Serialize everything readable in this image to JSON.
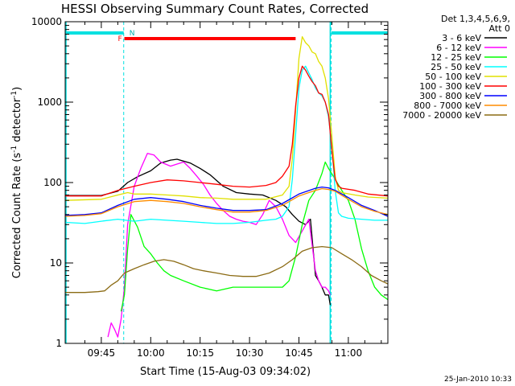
{
  "chart_data": {
    "type": "line",
    "title": "HESSI Observing Summary Count Rates, Corrected",
    "xlabel": "Start Time (15-Aug-03 09:34:02)",
    "ylabel": "Corrected Count Rate (s",
    "ylabel_sup": "-1",
    "ylabel_mid": " detector",
    "ylabel_end": ")",
    "yscale": "log",
    "ylim": [
      1,
      10000
    ],
    "xlim_minutes": [
      34.03,
      132.0
    ],
    "x_ticks": [
      {
        "minute": 45,
        "label": "09:45"
      },
      {
        "minute": 60,
        "label": "10:00"
      },
      {
        "minute": 75,
        "label": "10:15"
      },
      {
        "minute": 90,
        "label": "10:30"
      },
      {
        "minute": 105,
        "label": "10:45"
      },
      {
        "minute": 120,
        "label": "11:00"
      }
    ],
    "y_ticks": [
      {
        "value": 1,
        "label": "1"
      },
      {
        "value": 10,
        "label": "10"
      },
      {
        "value": 100,
        "label": "100"
      },
      {
        "value": 1000,
        "label": "1000"
      },
      {
        "value": 10000,
        "label": "10000"
      }
    ],
    "legend_header": [
      "Det 1,3,4,5,6,9,",
      "Att 0"
    ],
    "legend_position": "top-right",
    "footer_date": "25-Jan-2010 10:33",
    "night_intervals": [
      [
        34.03,
        51.8
      ],
      [
        114.8,
        132.0
      ]
    ],
    "night_label": "N",
    "flare_interval": [
      52.0,
      104.0
    ],
    "flare_label": "F",
    "day_boundaries": [
      51.8,
      114.8
    ],
    "series": [
      {
        "name": "3 - 6 keV",
        "color": "#000000",
        "points": [
          [
            34.03,
            69
          ],
          [
            45,
            69
          ],
          [
            50,
            78
          ],
          [
            53,
            100
          ],
          [
            56,
            118
          ],
          [
            60,
            140
          ],
          [
            63,
            175
          ],
          [
            66,
            190
          ],
          [
            68,
            195
          ],
          [
            72,
            175
          ],
          [
            75,
            150
          ],
          [
            78,
            125
          ],
          [
            82,
            90
          ],
          [
            86,
            75
          ],
          [
            90,
            72
          ],
          [
            94,
            70
          ],
          [
            98,
            60
          ],
          [
            101,
            50
          ],
          [
            103,
            40
          ],
          [
            105,
            33
          ],
          [
            107,
            30
          ],
          [
            108.5,
            35
          ],
          [
            110,
            7
          ],
          [
            111,
            6
          ],
          [
            112,
            5
          ],
          [
            113,
            4
          ],
          [
            114,
            4
          ],
          [
            114.5,
            3
          ]
        ]
      },
      {
        "name": "6 - 12 keV",
        "color": "#ff00ff",
        "points": [
          [
            47,
            1.2
          ],
          [
            48,
            1.8
          ],
          [
            49,
            1.5
          ],
          [
            50,
            1.2
          ],
          [
            51,
            2
          ],
          [
            52,
            5
          ],
          [
            53,
            30
          ],
          [
            55,
            90
          ],
          [
            57,
            150
          ],
          [
            59,
            230
          ],
          [
            61,
            220
          ],
          [
            63,
            180
          ],
          [
            66,
            160
          ],
          [
            68,
            170
          ],
          [
            70,
            180
          ],
          [
            72,
            150
          ],
          [
            74,
            120
          ],
          [
            76,
            95
          ],
          [
            78,
            70
          ],
          [
            80,
            55
          ],
          [
            82,
            45
          ],
          [
            84,
            38
          ],
          [
            86,
            35
          ],
          [
            88,
            33
          ],
          [
            90,
            32
          ],
          [
            92,
            30
          ],
          [
            94,
            40
          ],
          [
            96,
            60
          ],
          [
            98,
            50
          ],
          [
            100,
            35
          ],
          [
            102,
            22
          ],
          [
            104,
            18
          ],
          [
            106,
            25
          ],
          [
            108,
            35
          ],
          [
            110,
            8
          ],
          [
            111,
            6
          ],
          [
            112,
            5
          ],
          [
            113,
            5
          ],
          [
            114,
            4.5
          ],
          [
            114.5,
            4
          ]
        ]
      },
      {
        "name": "12 - 25 keV",
        "color": "#00ff00",
        "points": [
          [
            51,
            2.5
          ],
          [
            52,
            4
          ],
          [
            53,
            15
          ],
          [
            54,
            40
          ],
          [
            56,
            28
          ],
          [
            58,
            16
          ],
          [
            60,
            13
          ],
          [
            62,
            10
          ],
          [
            64,
            8
          ],
          [
            66,
            7
          ],
          [
            70,
            6
          ],
          [
            75,
            5
          ],
          [
            80,
            4.5
          ],
          [
            85,
            5
          ],
          [
            90,
            5
          ],
          [
            95,
            5
          ],
          [
            100,
            5
          ],
          [
            102,
            6
          ],
          [
            104,
            12
          ],
          [
            106,
            30
          ],
          [
            108,
            60
          ],
          [
            110,
            80
          ],
          [
            112,
            130
          ],
          [
            113,
            180
          ],
          [
            114,
            150
          ],
          [
            116,
            110
          ],
          [
            118,
            80
          ],
          [
            120,
            60
          ],
          [
            122,
            35
          ],
          [
            124,
            15
          ],
          [
            126,
            8
          ],
          [
            128,
            5
          ],
          [
            130,
            4
          ],
          [
            132,
            3.5
          ]
        ]
      },
      {
        "name": "25 - 50 keV",
        "color": "#00ffff",
        "points": [
          [
            34.03,
            32
          ],
          [
            40,
            31
          ],
          [
            45,
            33
          ],
          [
            50,
            35
          ],
          [
            55,
            33
          ],
          [
            60,
            35
          ],
          [
            65,
            34
          ],
          [
            70,
            33
          ],
          [
            75,
            32
          ],
          [
            80,
            31
          ],
          [
            85,
            31
          ],
          [
            90,
            32
          ],
          [
            95,
            34
          ],
          [
            98,
            35
          ],
          [
            100,
            38
          ],
          [
            102,
            50
          ],
          [
            103,
            110
          ],
          [
            104,
            400
          ],
          [
            105,
            1500
          ],
          [
            106,
            2500
          ],
          [
            107,
            2800
          ],
          [
            108,
            2300
          ],
          [
            109,
            1900
          ],
          [
            110,
            1500
          ],
          [
            111,
            1300
          ],
          [
            112,
            1200
          ],
          [
            113,
            1000
          ],
          [
            114,
            650
          ],
          [
            115,
            280
          ],
          [
            116,
            80
          ],
          [
            117,
            42
          ],
          [
            118,
            38
          ],
          [
            120,
            36
          ],
          [
            124,
            35
          ],
          [
            128,
            34
          ],
          [
            132,
            34
          ]
        ]
      },
      {
        "name": "50 - 100 keV",
        "color": "#e0e000",
        "points": [
          [
            34.03,
            60
          ],
          [
            45,
            62
          ],
          [
            50,
            70
          ],
          [
            53,
            75
          ],
          [
            55,
            72
          ],
          [
            60,
            72
          ],
          [
            65,
            70
          ],
          [
            70,
            68
          ],
          [
            75,
            65
          ],
          [
            80,
            64
          ],
          [
            85,
            62
          ],
          [
            90,
            62
          ],
          [
            95,
            62
          ],
          [
            100,
            70
          ],
          [
            102,
            90
          ],
          [
            103,
            200
          ],
          [
            104,
            800
          ],
          [
            105,
            3500
          ],
          [
            106,
            6500
          ],
          [
            107,
            5500
          ],
          [
            108,
            5000
          ],
          [
            109,
            4200
          ],
          [
            110,
            4000
          ],
          [
            111,
            3200
          ],
          [
            112,
            2800
          ],
          [
            113,
            2000
          ],
          [
            114,
            1100
          ],
          [
            115,
            380
          ],
          [
            116,
            120
          ],
          [
            117,
            80
          ],
          [
            118,
            75
          ],
          [
            122,
            70
          ],
          [
            126,
            66
          ],
          [
            132,
            64
          ]
        ]
      },
      {
        "name": "100 - 300 keV",
        "color": "#ff0000",
        "points": [
          [
            34.03,
            68
          ],
          [
            45,
            68
          ],
          [
            50,
            80
          ],
          [
            55,
            90
          ],
          [
            60,
            100
          ],
          [
            65,
            108
          ],
          [
            70,
            105
          ],
          [
            75,
            100
          ],
          [
            80,
            95
          ],
          [
            85,
            90
          ],
          [
            90,
            88
          ],
          [
            95,
            92
          ],
          [
            98,
            100
          ],
          [
            100,
            120
          ],
          [
            102,
            160
          ],
          [
            103,
            300
          ],
          [
            104,
            900
          ],
          [
            105,
            2000
          ],
          [
            106,
            2800
          ],
          [
            107,
            2500
          ],
          [
            108,
            2100
          ],
          [
            109,
            1800
          ],
          [
            110,
            1600
          ],
          [
            111,
            1300
          ],
          [
            112,
            1250
          ],
          [
            113,
            1000
          ],
          [
            114,
            700
          ],
          [
            115,
            250
          ],
          [
            116,
            110
          ],
          [
            117,
            90
          ],
          [
            118,
            85
          ],
          [
            122,
            80
          ],
          [
            126,
            72
          ],
          [
            132,
            68
          ]
        ]
      },
      {
        "name": "300 - 800 keV",
        "color": "#0000ff",
        "points": [
          [
            34.03,
            39
          ],
          [
            40,
            40
          ],
          [
            45,
            42
          ],
          [
            50,
            52
          ],
          [
            55,
            62
          ],
          [
            60,
            65
          ],
          [
            65,
            62
          ],
          [
            70,
            58
          ],
          [
            75,
            52
          ],
          [
            80,
            48
          ],
          [
            85,
            45
          ],
          [
            90,
            45
          ],
          [
            95,
            46
          ],
          [
            100,
            55
          ],
          [
            105,
            72
          ],
          [
            110,
            85
          ],
          [
            112,
            88
          ],
          [
            114,
            86
          ],
          [
            116,
            80
          ],
          [
            120,
            65
          ],
          [
            124,
            52
          ],
          [
            128,
            45
          ],
          [
            132,
            38
          ]
        ]
      },
      {
        "name": "800 - 7000 keV",
        "color": "#ff8c00",
        "points": [
          [
            34.03,
            38
          ],
          [
            40,
            39
          ],
          [
            45,
            41
          ],
          [
            50,
            50
          ],
          [
            55,
            58
          ],
          [
            60,
            60
          ],
          [
            65,
            58
          ],
          [
            70,
            55
          ],
          [
            75,
            50
          ],
          [
            80,
            46
          ],
          [
            85,
            43
          ],
          [
            90,
            43
          ],
          [
            95,
            45
          ],
          [
            100,
            52
          ],
          [
            105,
            68
          ],
          [
            110,
            80
          ],
          [
            112,
            84
          ],
          [
            114,
            82
          ],
          [
            116,
            78
          ],
          [
            120,
            62
          ],
          [
            124,
            50
          ],
          [
            128,
            44
          ],
          [
            132,
            40
          ]
        ]
      },
      {
        "name": "7000 - 20000 keV",
        "color": "#8b6b14",
        "points": [
          [
            34.03,
            4.3
          ],
          [
            40,
            4.3
          ],
          [
            44,
            4.4
          ],
          [
            46,
            4.5
          ],
          [
            48,
            5.3
          ],
          [
            50,
            6
          ],
          [
            52,
            7.5
          ],
          [
            55,
            8.5
          ],
          [
            58,
            9.5
          ],
          [
            61,
            10.5
          ],
          [
            64,
            11
          ],
          [
            67,
            10.5
          ],
          [
            70,
            9.5
          ],
          [
            73,
            8.5
          ],
          [
            76,
            8
          ],
          [
            80,
            7.5
          ],
          [
            84,
            7
          ],
          [
            88,
            6.8
          ],
          [
            92,
            6.8
          ],
          [
            96,
            7.5
          ],
          [
            100,
            9
          ],
          [
            103,
            11
          ],
          [
            106,
            14
          ],
          [
            109,
            15.5
          ],
          [
            112,
            16
          ],
          [
            115,
            15.5
          ],
          [
            118,
            13
          ],
          [
            121,
            11
          ],
          [
            124,
            9
          ],
          [
            127,
            7
          ],
          [
            130,
            6
          ],
          [
            132,
            5.5
          ]
        ]
      }
    ]
  }
}
